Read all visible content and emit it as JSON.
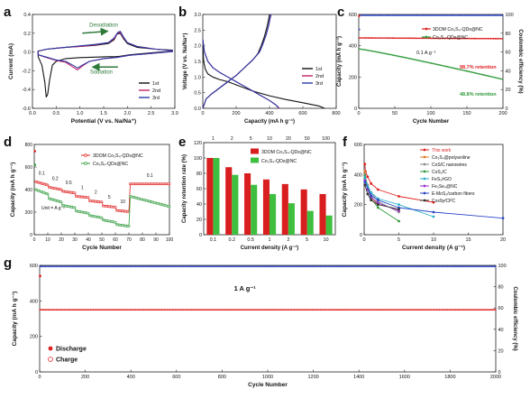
{
  "chart_data": [
    {
      "panel": "a",
      "type": "line",
      "xlabel": "Potential (V vs. Na/Na⁺)",
      "ylabel": "Current (mA)",
      "xlim": [
        0.0,
        3.0
      ],
      "ylim": [
        -0.6,
        0.4
      ],
      "xticks": [
        "0.0",
        "0.5",
        "1.0",
        "1.5",
        "2.0",
        "2.5",
        "3.0"
      ],
      "yticks": [
        "-0.6",
        "-0.4",
        "-0.2",
        "0.0",
        "0.2",
        "0.4"
      ],
      "annotations": [
        "Desodiation",
        "Sodiation"
      ],
      "legend_position": "bottom-right",
      "series": [
        {
          "name": "1st",
          "color": "#111111",
          "x": [
            0.12,
            0.2,
            0.26,
            0.29,
            0.32,
            0.36,
            0.42,
            0.5,
            0.7,
            1.0,
            1.3,
            1.6,
            1.75,
            1.85,
            2.05,
            2.5,
            2.95,
            2.95,
            2.6,
            2.2,
            2.0,
            1.92,
            1.85,
            1.78,
            1.72,
            1.6,
            1.3,
            1.0,
            0.7,
            0.5,
            0.3,
            0.12
          ],
          "y": [
            -0.05,
            -0.14,
            -0.32,
            -0.48,
            -0.45,
            -0.3,
            -0.14,
            -0.1,
            -0.07,
            -0.06,
            -0.055,
            -0.05,
            -0.05,
            -0.045,
            -0.03,
            -0.01,
            0.01,
            0.02,
            0.03,
            0.05,
            0.09,
            0.14,
            0.2,
            0.19,
            0.13,
            0.09,
            0.07,
            0.06,
            0.05,
            0.04,
            0.03,
            0.01
          ]
        },
        {
          "name": "2nd",
          "color": "#c0246a",
          "x": [
            0.12,
            0.3,
            0.5,
            0.7,
            0.85,
            0.95,
            1.05,
            1.2,
            1.5,
            1.75,
            2.05,
            2.5,
            2.95,
            2.95,
            2.6,
            2.2,
            2.0,
            1.92,
            1.85,
            1.79,
            1.72,
            1.6,
            1.3,
            1.0,
            0.7,
            0.5,
            0.3,
            0.12
          ],
          "y": [
            -0.03,
            -0.06,
            -0.09,
            -0.11,
            -0.16,
            -0.19,
            -0.15,
            -0.1,
            -0.07,
            -0.06,
            -0.035,
            -0.015,
            0.005,
            0.015,
            0.03,
            0.06,
            0.1,
            0.15,
            0.21,
            0.2,
            0.14,
            0.1,
            0.075,
            0.06,
            0.05,
            0.04,
            0.03,
            0.01
          ]
        },
        {
          "name": "3rd",
          "color": "#2b3aa8",
          "x": [
            0.12,
            0.3,
            0.5,
            0.7,
            0.85,
            0.95,
            1.05,
            1.2,
            1.5,
            1.75,
            2.05,
            2.5,
            2.95,
            2.95,
            2.6,
            2.2,
            2.0,
            1.92,
            1.85,
            1.8,
            1.72,
            1.6,
            1.3,
            1.0,
            0.7,
            0.5,
            0.3,
            0.12
          ],
          "y": [
            -0.03,
            -0.055,
            -0.085,
            -0.1,
            -0.14,
            -0.17,
            -0.14,
            -0.1,
            -0.07,
            -0.06,
            -0.035,
            -0.015,
            0.005,
            0.015,
            0.03,
            0.06,
            0.1,
            0.16,
            0.22,
            0.21,
            0.15,
            0.1,
            0.08,
            0.065,
            0.05,
            0.04,
            0.03,
            0.01
          ]
        }
      ]
    },
    {
      "panel": "b",
      "type": "line",
      "xlabel": "Capacity (mA h g⁻¹)",
      "ylabel": "Voltage (V vs. Na/Na⁺)",
      "xlim": [
        0,
        800
      ],
      "ylim": [
        0.0,
        3.0
      ],
      "xticks": [
        "0",
        "200",
        "400",
        "600",
        "800"
      ],
      "yticks": [
        "0.0",
        "0.5",
        "1.0",
        "1.5",
        "2.0",
        "2.5",
        "3.0"
      ],
      "legend_position": "right",
      "series": [
        {
          "name": "1st",
          "color": "#111111",
          "discharge": {
            "x": [
              0,
              5,
              15,
              30,
              60,
              100,
              150,
              200,
              300,
              400,
              500,
              600,
              700,
              730
            ],
            "y": [
              2.0,
              1.5,
              1.25,
              1.1,
              1.0,
              0.92,
              0.85,
              0.75,
              0.55,
              0.4,
              0.28,
              0.18,
              0.07,
              0.0
            ]
          },
          "charge": {
            "x": [
              0,
              20,
              50,
              100,
              150,
              200,
              250,
              300,
              330,
              350,
              370,
              385,
              395,
              400
            ],
            "y": [
              0.0,
              0.3,
              0.45,
              0.65,
              0.85,
              1.05,
              1.3,
              1.55,
              1.75,
              2.0,
              2.3,
              2.6,
              2.85,
              3.0
            ]
          }
        },
        {
          "name": "2nd",
          "color": "#c0246a",
          "discharge": {
            "x": [
              0,
              10,
              30,
              60,
              100,
              150,
              200,
              250,
              300,
              350,
              400,
              440,
              460
            ],
            "y": [
              2.2,
              1.8,
              1.5,
              1.3,
              1.15,
              1.0,
              0.85,
              0.7,
              0.55,
              0.4,
              0.25,
              0.1,
              0.0
            ]
          },
          "charge": {
            "x": [
              0,
              20,
              50,
              100,
              150,
              200,
              250,
              300,
              340,
              360,
              380,
              395,
              405,
              410
            ],
            "y": [
              0.0,
              0.3,
              0.45,
              0.65,
              0.85,
              1.05,
              1.3,
              1.55,
              1.8,
              2.05,
              2.35,
              2.65,
              2.9,
              3.0
            ]
          }
        },
        {
          "name": "3rd",
          "color": "#2b3aa8",
          "discharge": {
            "x": [
              0,
              10,
              30,
              60,
              100,
              150,
              200,
              250,
              300,
              350,
              400,
              440,
              455
            ],
            "y": [
              2.2,
              1.8,
              1.5,
              1.3,
              1.15,
              1.0,
              0.85,
              0.7,
              0.55,
              0.4,
              0.25,
              0.1,
              0.0
            ]
          },
          "charge": {
            "x": [
              0,
              20,
              50,
              100,
              150,
              200,
              250,
              300,
              340,
              360,
              380,
              395,
              403,
              408
            ],
            "y": [
              0.0,
              0.3,
              0.45,
              0.65,
              0.85,
              1.05,
              1.3,
              1.55,
              1.8,
              2.05,
              2.35,
              2.65,
              2.9,
              3.0
            ]
          }
        }
      ]
    },
    {
      "panel": "c",
      "type": "scatter",
      "xlabel": "Cycle Number",
      "ylabel": "Capacity (mA h g⁻¹)",
      "y2label": "Coulombic efficiency (%)",
      "xlim": [
        0,
        200
      ],
      "ylim": [
        0,
        600
      ],
      "y2lim": [
        0,
        100
      ],
      "xticks": [
        "0",
        "50",
        "100",
        "150",
        "200"
      ],
      "yticks": [
        "0",
        "200",
        "400",
        "600"
      ],
      "y2ticks": [
        "0",
        "20",
        "40",
        "60",
        "80",
        "100"
      ],
      "annotations": [
        "0.1 A g⁻¹",
        "98.7% retention",
        "48.8% retention"
      ],
      "series": [
        {
          "name": "3DOM Co₃S₄-QDs@NC",
          "color": "#e02020",
          "capacity_start": 450,
          "capacity_end": 445
        },
        {
          "name": "Co₃S₄-QDs@NC",
          "color": "#2e9a3a",
          "capacity_start": 380,
          "capacity_end": 185
        },
        {
          "name": "Coulombic efficiency",
          "color": "#2b47c8",
          "value": 99
        }
      ]
    },
    {
      "panel": "d",
      "type": "scatter",
      "xlabel": "Cycle Number",
      "ylabel": "Capacity (mA h g⁻¹)",
      "xlim": [
        0,
        100
      ],
      "ylim": [
        0,
        800
      ],
      "xticks": [
        "0",
        "10",
        "20",
        "30",
        "40",
        "50",
        "60",
        "70",
        "80",
        "90",
        "100"
      ],
      "yticks": [
        "0",
        "200",
        "400",
        "600",
        "800"
      ],
      "unit_note": "Unit = A g⁻¹",
      "rate_labels": [
        "0.1",
        "0.2",
        "0.5",
        "1",
        "2",
        "5",
        "10",
        "0.1"
      ],
      "series": [
        {
          "name": "3DOM Co₃S₄-QDs@NC",
          "color": "#e02020",
          "segments": [
            {
              "x": [
                1,
                10
              ],
              "y": [
                470,
                440
              ]
            },
            {
              "x": [
                11,
                20
              ],
              "y": [
                420,
                400
              ]
            },
            {
              "x": [
                21,
                30
              ],
              "y": [
                385,
                370
              ]
            },
            {
              "x": [
                31,
                40
              ],
              "y": [
                340,
                330
              ]
            },
            {
              "x": [
                41,
                50
              ],
              "y": [
                300,
                290
              ]
            },
            {
              "x": [
                51,
                60
              ],
              "y": [
                255,
                245
              ]
            },
            {
              "x": [
                61,
                70
              ],
              "y": [
                215,
                205
              ]
            },
            {
              "x": [
                71,
                100
              ],
              "y": [
                450,
                450
              ]
            }
          ],
          "first_cycle": 740
        },
        {
          "name": "Co₃S₄-QDs@NC",
          "color": "#2e9a3a",
          "segments": [
            {
              "x": [
                1,
                10
              ],
              "y": [
                400,
                360
              ]
            },
            {
              "x": [
                11,
                20
              ],
              "y": [
                320,
                290
              ]
            },
            {
              "x": [
                21,
                30
              ],
              "y": [
                260,
                240
              ]
            },
            {
              "x": [
                31,
                40
              ],
              "y": [
                210,
                190
              ]
            },
            {
              "x": [
                41,
                50
              ],
              "y": [
                170,
                150
              ]
            },
            {
              "x": [
                51,
                60
              ],
              "y": [
                130,
                110
              ]
            },
            {
              "x": [
                61,
                70
              ],
              "y": [
                90,
                75
              ]
            },
            {
              "x": [
                71,
                100
              ],
              "y": [
                340,
                250
              ]
            }
          ],
          "first_cycle": 620
        }
      ]
    },
    {
      "panel": "e",
      "type": "bar",
      "xlabel": "Current density (A g⁻¹)",
      "ylabel": "Capacity retention rate (%)",
      "ylim": [
        0,
        120
      ],
      "yticks": [
        "0",
        "20",
        "40",
        "60",
        "80",
        "100",
        "120"
      ],
      "categories": [
        "0.1",
        "0.2",
        "0.5",
        "1",
        "2",
        "5",
        "10"
      ],
      "top_ticks": [
        "1",
        "2",
        "5",
        "10",
        "20",
        "50",
        "100"
      ],
      "series": [
        {
          "name": "3DOM Co₃S₄-QDs@NC",
          "color": "#d81e1e",
          "values": [
            100,
            88,
            80,
            72,
            66,
            59,
            53
          ]
        },
        {
          "name": "Co₃S₄-QDs@NC",
          "color": "#3fbf3f",
          "values": [
            100,
            78,
            65,
            53,
            41,
            31,
            25
          ]
        }
      ]
    },
    {
      "panel": "f",
      "type": "line",
      "xlabel": "Current density (A g⁻¹)",
      "ylabel": "Capacity (mA h g⁻¹)",
      "xlim": [
        0,
        20
      ],
      "ylim": [
        0,
        600
      ],
      "xticks": [
        "0",
        "5",
        "10",
        "15",
        "20"
      ],
      "yticks": [
        "0",
        "200",
        "400",
        "600"
      ],
      "series": [
        {
          "name": "This work",
          "color": "#e02020",
          "x": [
            0.1,
            0.2,
            0.5,
            1,
            2,
            5,
            10
          ],
          "y": [
            470,
            420,
            385,
            340,
            300,
            255,
            215
          ]
        },
        {
          "name": "Co₃S₄@polyaniline",
          "color": "#e07a20",
          "x": [
            0.1,
            0.2,
            0.5,
            1,
            2
          ],
          "y": [
            420,
            360,
            300,
            250,
            200
          ]
        },
        {
          "name": "CoS/C nanowires",
          "color": "#8a8a8a",
          "x": [
            0.1,
            0.5,
            1,
            2,
            5
          ],
          "y": [
            400,
            330,
            280,
            220,
            150
          ]
        },
        {
          "name": "CoS₂/C",
          "color": "#2e9a3a",
          "x": [
            0.1,
            0.5,
            1,
            2,
            5
          ],
          "y": [
            390,
            300,
            240,
            180,
            90
          ]
        },
        {
          "name": "FeS₂/rGO",
          "color": "#2bb0c8",
          "x": [
            0.1,
            0.5,
            1,
            2,
            5,
            10
          ],
          "y": [
            380,
            320,
            280,
            240,
            200,
            120
          ]
        },
        {
          "name": "Fe₃Se₄@NC",
          "color": "#9a2bc8",
          "x": [
            0.1,
            0.5,
            1,
            2,
            5
          ],
          "y": [
            360,
            300,
            250,
            210,
            160
          ]
        },
        {
          "name": "E-MoS₂/carbon fibers",
          "color": "#2b47c8",
          "x": [
            0.1,
            1,
            2,
            5,
            10,
            20
          ],
          "y": [
            350,
            260,
            230,
            180,
            150,
            110
          ]
        },
        {
          "name": "Cox9y/CPC",
          "color": "#333333",
          "x": [
            0.1,
            0.5,
            1,
            2,
            5
          ],
          "y": [
            330,
            270,
            230,
            200,
            170
          ]
        }
      ]
    },
    {
      "panel": "g",
      "type": "scatter",
      "xlabel": "Cycle Number",
      "ylabel": "Capacity (mA h g⁻¹)",
      "y2label": "Coulombic efficiency (%)",
      "xlim": [
        0,
        2000
      ],
      "ylim": [
        0,
        600
      ],
      "y2lim": [
        0,
        100
      ],
      "xticks": [
        "0",
        "200",
        "400",
        "600",
        "800",
        "1000",
        "1200",
        "1400",
        "1600",
        "1800",
        "2000"
      ],
      "yticks": [
        "0",
        "200",
        "400",
        "600"
      ],
      "y2ticks": [
        "0",
        "20",
        "40",
        "60",
        "80",
        "100"
      ],
      "annotations": [
        "1 A g⁻¹"
      ],
      "series": [
        {
          "name": "Discharge",
          "color": "#e02020",
          "value": 350,
          "first_cycle": 540
        },
        {
          "name": "Charge",
          "color": "#e02020",
          "value": 345
        },
        {
          "name": "Coulombic efficiency",
          "color": "#2b47c8",
          "value": 99
        }
      ]
    }
  ],
  "panel_labels": [
    "a",
    "b",
    "c",
    "d",
    "e",
    "f",
    "g"
  ]
}
